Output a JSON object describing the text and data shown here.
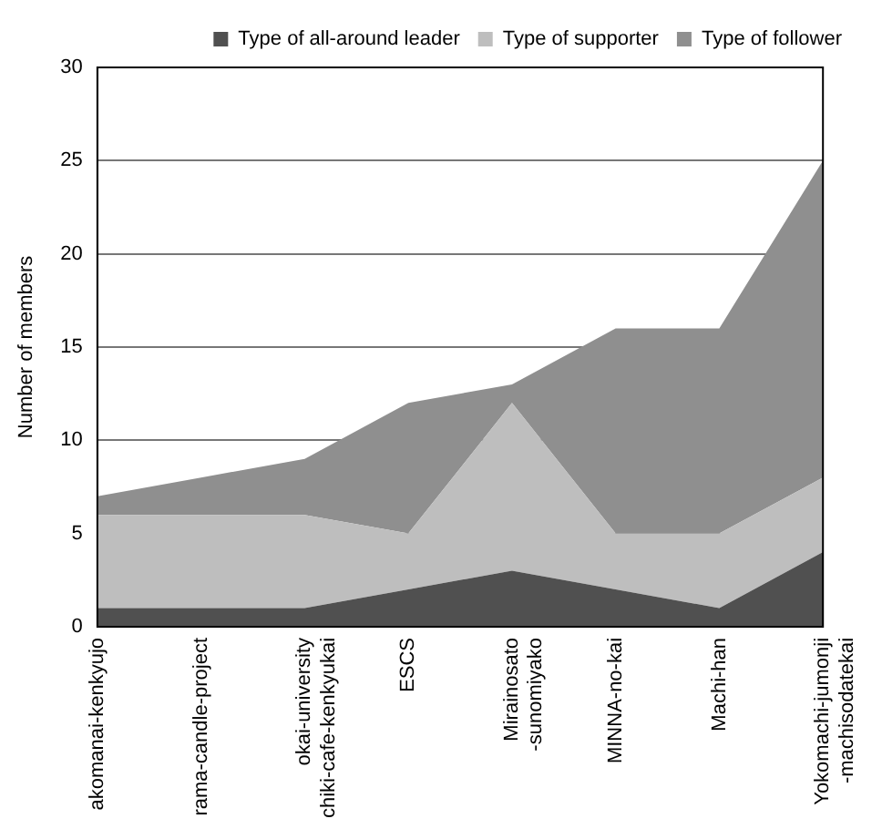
{
  "chart_data": {
    "type": "area",
    "stacked": true,
    "ylabel": "Number of members",
    "categories": [
      "akomanai-kenkyujo",
      "rama-candle-project",
      "okai-university\nchiki-cafe-kenkyukai",
      "ESCS",
      "Mirainosato\n-sunomiyako",
      "MINNA-no-kai",
      "Machi-han",
      "Yokomachi-jumonji\n-machisodatekai"
    ],
    "series": [
      {
        "name": "Type of all-around leader",
        "color": "#505050",
        "values": [
          1,
          1,
          1,
          2,
          3,
          2,
          1,
          4
        ]
      },
      {
        "name": "Type of supporter",
        "color": "#bebebe",
        "values": [
          5,
          5,
          5,
          3,
          9,
          3,
          4,
          4
        ]
      },
      {
        "name": "Type of follower",
        "color": "#8f8f8f",
        "values": [
          1,
          2,
          3,
          7,
          1,
          11,
          11,
          17
        ]
      }
    ],
    "ylim": [
      0,
      30
    ],
    "yticks": [
      0,
      5,
      10,
      15,
      20,
      25,
      30
    ],
    "grid": "y",
    "legend": "top"
  }
}
